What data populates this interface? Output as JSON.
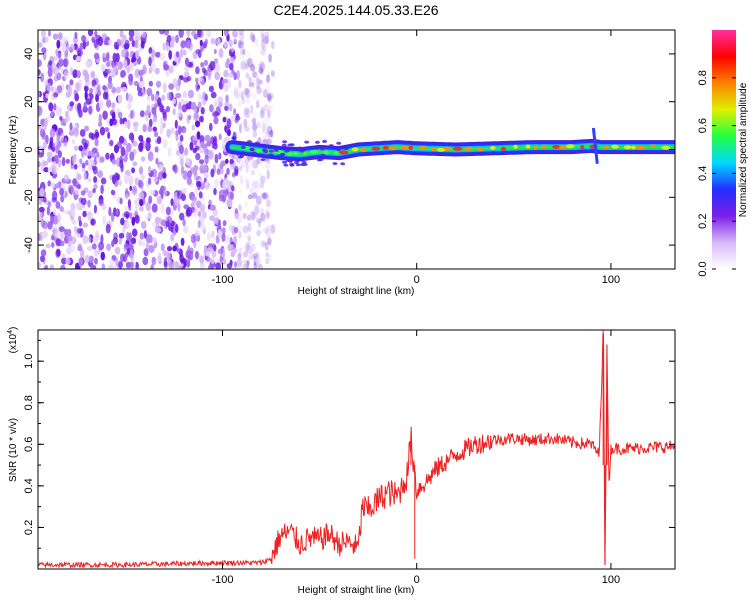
{
  "chart_data": [
    {
      "type": "heatmap",
      "title": "C2E4.2025.144.05.33.E26",
      "xlabel": "Height of straight line (km)",
      "ylabel": "Frequency (Hz)",
      "xlim": [
        -195,
        133
      ],
      "ylim": [
        -50,
        50
      ],
      "xticks": [
        -100,
        0,
        100
      ],
      "yticks": [
        -40,
        -20,
        0,
        20,
        40
      ],
      "grid": false,
      "noise_region_x": [
        -195,
        -80
      ],
      "signal_ridge": {
        "x": [
          -95,
          -85,
          -70,
          -60,
          -50,
          -40,
          -30,
          -20,
          -10,
          0,
          20,
          40,
          60,
          80,
          90,
          95,
          100,
          133
        ],
        "y": [
          1,
          0,
          -1.5,
          -2,
          -1,
          -1.5,
          0,
          0.5,
          1,
          0.5,
          0,
          0.5,
          1,
          1,
          1.5,
          1,
          1,
          1
        ]
      },
      "colorbar": {
        "label": "Normalized spectral amplitude",
        "range": [
          0,
          1
        ],
        "ticks": [
          "0.0",
          "0.2",
          "0.4",
          "0.6",
          "0.8"
        ],
        "colormap": [
          "#ffffff",
          "#d8b8f8",
          "#7b1fe8",
          "#2030ff",
          "#00d8ff",
          "#20ff40",
          "#e0f000",
          "#ff8000",
          "#ff0000",
          "#ff30a0"
        ]
      }
    },
    {
      "type": "line",
      "title": "",
      "xlabel": "Height of straight line (km)",
      "ylabel": "SNR (10 * v/v)",
      "exponent_label": "(x10",
      "exponent_sup": "4",
      "exponent_close": ")",
      "xlim": [
        -195,
        133
      ],
      "ylim": [
        0,
        1.15
      ],
      "xticks": [
        -100,
        0,
        100
      ],
      "yticks": [
        "0.2",
        "0.4",
        "0.6",
        "0.8",
        "1.0"
      ],
      "grid": false,
      "series": [
        {
          "color": "#ee2222",
          "x": [
            -195,
            -150,
            -100,
            -80,
            -75,
            -72,
            -70,
            -65,
            -60,
            -55,
            -50,
            -45,
            -40,
            -35,
            -30,
            -28,
            -25,
            -20,
            -15,
            -10,
            -5,
            -3,
            0,
            5,
            10,
            20,
            30,
            40,
            50,
            60,
            70,
            80,
            90,
            94,
            96,
            97,
            98,
            99,
            100,
            105,
            110,
            133
          ],
          "y": [
            0.02,
            0.02,
            0.03,
            0.03,
            0.05,
            0.12,
            0.16,
            0.18,
            0.12,
            0.15,
            0.14,
            0.17,
            0.12,
            0.13,
            0.1,
            0.3,
            0.28,
            0.33,
            0.37,
            0.35,
            0.45,
            0.63,
            0.38,
            0.42,
            0.48,
            0.55,
            0.6,
            0.62,
            0.63,
            0.62,
            0.63,
            0.61,
            0.6,
            0.55,
            1.13,
            0.02,
            1.08,
            0.4,
            0.58,
            0.58,
            0.58,
            0.59
          ]
        }
      ]
    }
  ]
}
